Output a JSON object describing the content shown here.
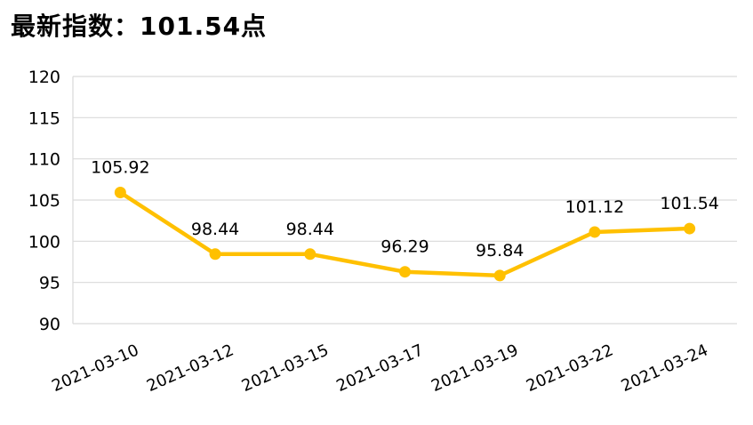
{
  "header": {
    "title": "最新指数：101.54点"
  },
  "chart_data": {
    "type": "line",
    "categories": [
      "2021-03-10",
      "2021-03-12",
      "2021-03-15",
      "2021-03-17",
      "2021-03-19",
      "2021-03-22",
      "2021-03-24"
    ],
    "values": [
      105.92,
      98.44,
      98.44,
      96.29,
      95.84,
      101.12,
      101.54
    ],
    "data_labels": [
      "105.92",
      "98.44",
      "98.44",
      "96.29",
      "95.84",
      "101.12",
      "101.54"
    ],
    "yticks": [
      90,
      95,
      100,
      105,
      110,
      115,
      120
    ],
    "ylim": [
      90,
      120
    ],
    "grid": true,
    "legend": "none",
    "line_color": "#FFC000"
  }
}
